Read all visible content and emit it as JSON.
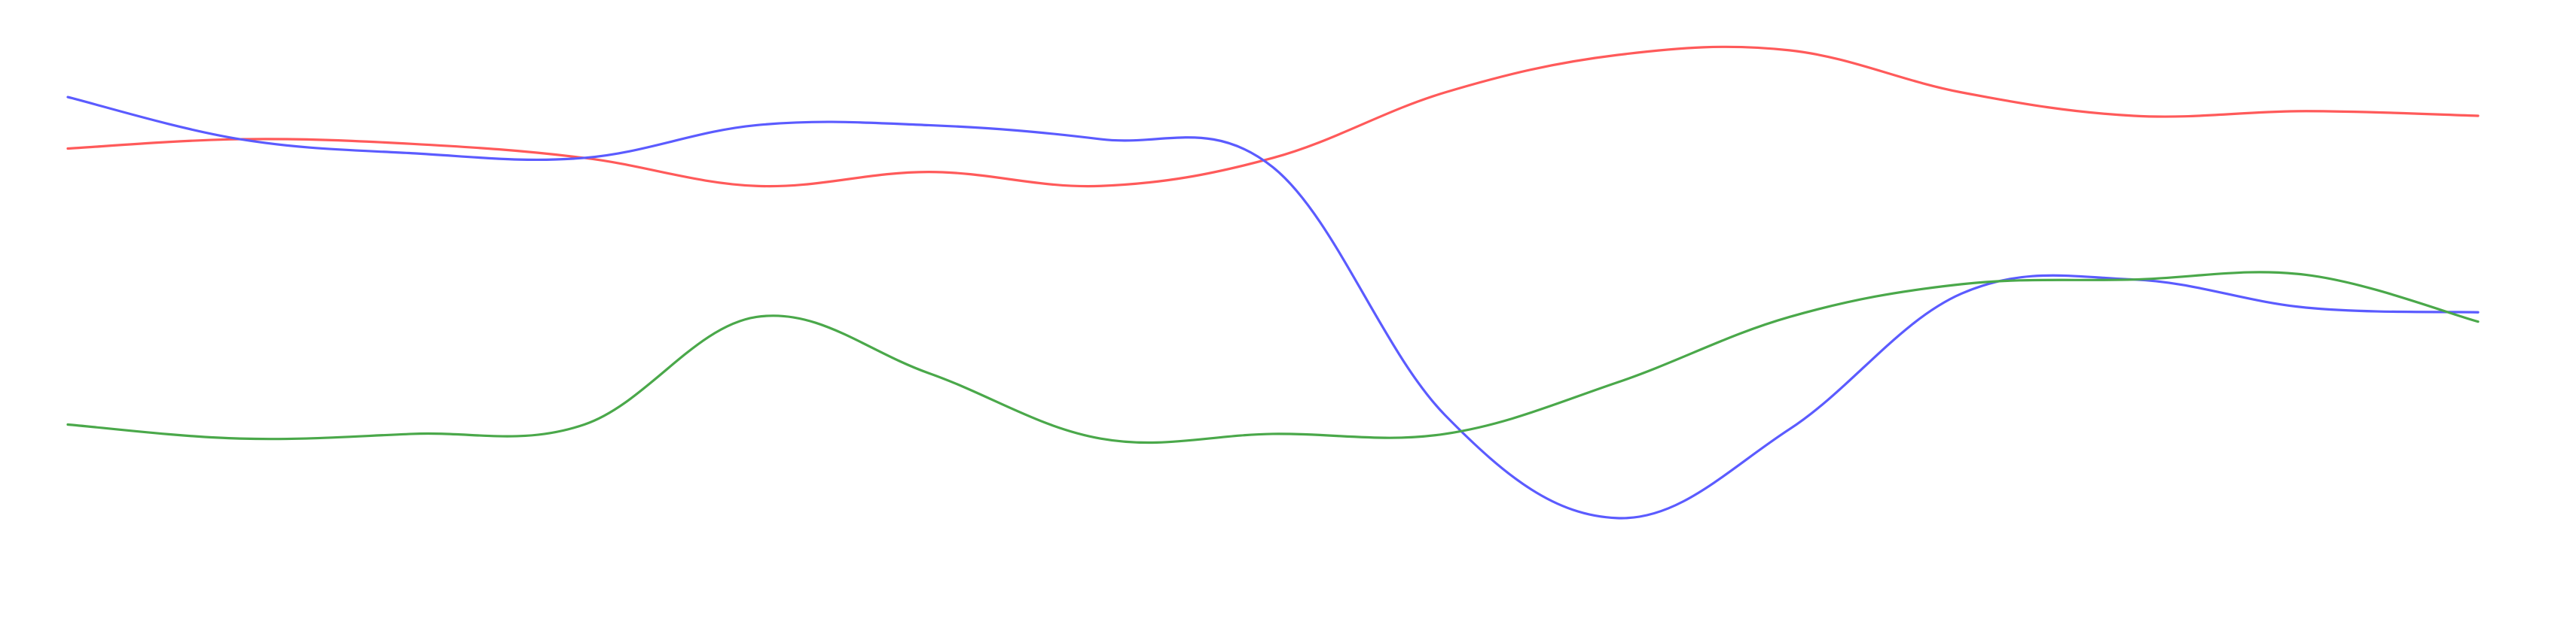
{
  "chart_data": {
    "type": "line",
    "title": "",
    "xlabel": "",
    "ylabel": "",
    "x": [
      0,
      1,
      2,
      3,
      4,
      5,
      6,
      7,
      8,
      9,
      10,
      11,
      12,
      13,
      14
    ],
    "xlim": [
      0,
      14
    ],
    "ylim": [
      0,
      100
    ],
    "grid": false,
    "legend": "none",
    "series": [
      {
        "color": "#ff5a5a",
        "values": [
          84,
          86,
          85,
          82,
          76,
          79,
          76,
          82,
          96,
          104,
          105,
          96,
          91,
          92,
          91
        ]
      },
      {
        "color": "#5b5bff",
        "values": [
          95,
          86,
          83,
          82,
          89,
          89,
          86,
          80,
          27,
          5,
          24,
          53,
          56,
          50,
          49
        ]
      },
      {
        "color": "#4aa84a",
        "values": [
          25,
          22,
          23,
          25,
          48,
          36,
          22,
          23,
          23,
          34,
          48,
          55,
          56,
          57,
          47
        ]
      }
    ]
  }
}
